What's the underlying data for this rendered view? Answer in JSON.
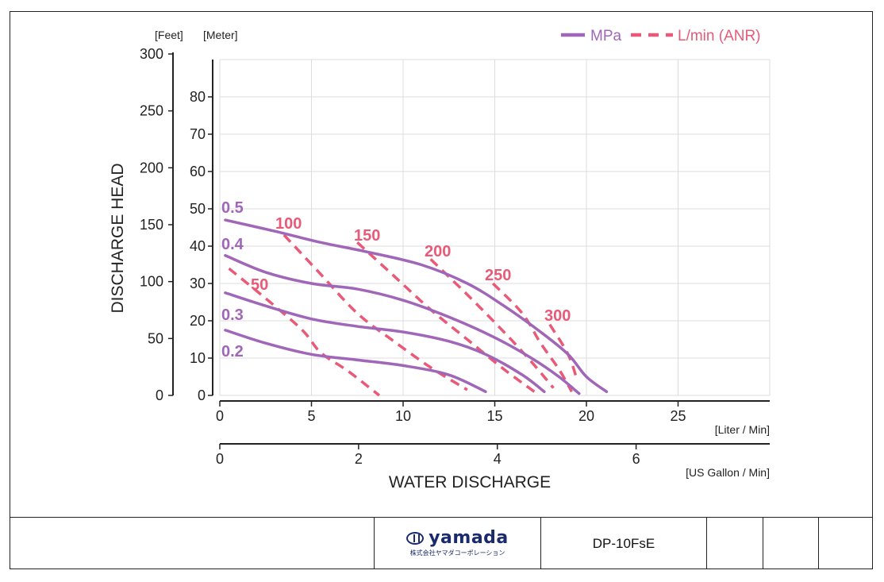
{
  "chart_data": {
    "type": "line",
    "ylabel": "DISCHARGE HEAD",
    "xlabel": "WATER DISCHARGE",
    "y_unit_feet": "[Feet]",
    "y_unit_meter": "[Meter]",
    "x_unit_liter": "[Liter / Min]",
    "x_unit_gallon": "[US Gallon / Min]",
    "legend": [
      {
        "label": "MPa",
        "color": "#a066b8",
        "style": "solid"
      },
      {
        "label": "L/min (ANR)",
        "color": "#e85a78",
        "style": "dashed"
      }
    ],
    "legend_position": "top-right",
    "grid": true,
    "xlim_liter": [
      0,
      30
    ],
    "ylim_meter": [
      0,
      90
    ],
    "feet_ticks": [
      "0",
      "50",
      "100",
      "150",
      "200",
      "250",
      "300"
    ],
    "meter_ticks": [
      "0",
      "10",
      "20",
      "30",
      "40",
      "50",
      "60",
      "70",
      "80"
    ],
    "liter_ticks": [
      "0",
      "5",
      "10",
      "15",
      "20",
      "25"
    ],
    "gallon_ticks": [
      "0",
      "2",
      "4",
      "6"
    ],
    "pressure_series": [
      {
        "name": "0.5",
        "points": [
          [
            0.3,
            47
          ],
          [
            3,
            44
          ],
          [
            5.5,
            41
          ],
          [
            8,
            38.5
          ],
          [
            11,
            35
          ],
          [
            13.5,
            30
          ],
          [
            15.5,
            24
          ],
          [
            17.5,
            17
          ],
          [
            19,
            11
          ],
          [
            20,
            5
          ],
          [
            21.1,
            1
          ]
        ]
      },
      {
        "name": "0.4",
        "points": [
          [
            0.3,
            37.5
          ],
          [
            2.5,
            33
          ],
          [
            5,
            30
          ],
          [
            7.5,
            28.5
          ],
          [
            10,
            25.5
          ],
          [
            12.5,
            21
          ],
          [
            15,
            15.5
          ],
          [
            17,
            10
          ],
          [
            18.5,
            5
          ],
          [
            19.6,
            0.5
          ]
        ]
      },
      {
        "name": "0.3",
        "points": [
          [
            0.3,
            27.5
          ],
          [
            2.5,
            24
          ],
          [
            5,
            20.5
          ],
          [
            7.5,
            18.5
          ],
          [
            10,
            17
          ],
          [
            12.5,
            14.5
          ],
          [
            14.5,
            11
          ],
          [
            16.5,
            5.5
          ],
          [
            17.7,
            1
          ]
        ]
      },
      {
        "name": "0.2",
        "points": [
          [
            0.3,
            17.5
          ],
          [
            2.5,
            14
          ],
          [
            5,
            11
          ],
          [
            7.5,
            9.5
          ],
          [
            10,
            8
          ],
          [
            12.5,
            5.5
          ],
          [
            14.5,
            1
          ]
        ]
      }
    ],
    "airflow_series": [
      {
        "name": "50",
        "points": [
          [
            0.5,
            34
          ],
          [
            2.5,
            26
          ],
          [
            4.5,
            17.5
          ],
          [
            5.5,
            11.5
          ],
          [
            7,
            6.5
          ],
          [
            8.7,
            0
          ]
        ]
      },
      {
        "name": "100",
        "points": [
          [
            3.5,
            43
          ],
          [
            5.5,
            32.5
          ],
          [
            7.5,
            22
          ],
          [
            9.5,
            14.5
          ],
          [
            11.5,
            7.5
          ],
          [
            13.5,
            1.5
          ]
        ]
      },
      {
        "name": "150",
        "points": [
          [
            7.5,
            41
          ],
          [
            9.5,
            32
          ],
          [
            11.5,
            23
          ],
          [
            13.5,
            15
          ],
          [
            15.5,
            7
          ],
          [
            17.3,
            0.5
          ]
        ]
      },
      {
        "name": "200",
        "points": [
          [
            11.5,
            36.5
          ],
          [
            13.5,
            27
          ],
          [
            15.5,
            17
          ],
          [
            17,
            9
          ],
          [
            18.2,
            2
          ]
        ]
      },
      {
        "name": "250",
        "points": [
          [
            14.9,
            30
          ],
          [
            16.5,
            22
          ],
          [
            17.5,
            14
          ],
          [
            18.5,
            7
          ],
          [
            19.2,
            1
          ]
        ]
      },
      {
        "name": "300",
        "points": [
          [
            18,
            19
          ],
          [
            19,
            11
          ],
          [
            19.5,
            4
          ]
        ]
      }
    ]
  },
  "footer": {
    "logo_text": "yamada",
    "logo_sub": "株式会社ヤマダコーポレーション",
    "model": "DP-10FsE"
  }
}
